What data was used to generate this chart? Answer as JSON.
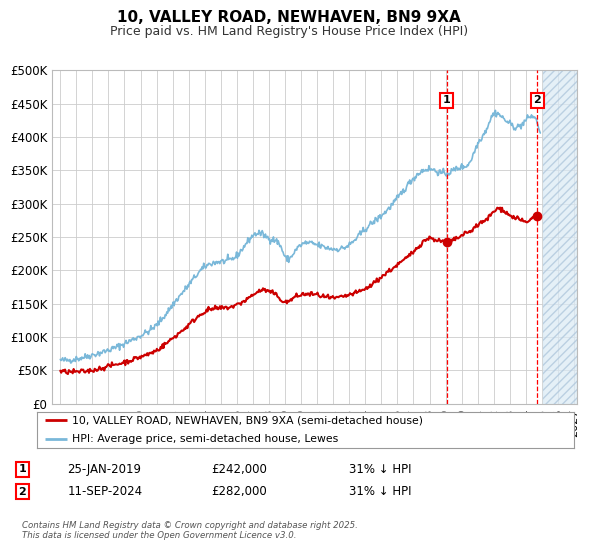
{
  "title": "10, VALLEY ROAD, NEWHAVEN, BN9 9XA",
  "subtitle": "Price paid vs. HM Land Registry's House Price Index (HPI)",
  "ylim": [
    0,
    500000
  ],
  "xlim_start": 1994.5,
  "xlim_end": 2027.2,
  "yticks": [
    0,
    50000,
    100000,
    150000,
    200000,
    250000,
    300000,
    350000,
    400000,
    450000,
    500000
  ],
  "ytick_labels": [
    "£0",
    "£50K",
    "£100K",
    "£150K",
    "£200K",
    "£250K",
    "£300K",
    "£350K",
    "£400K",
    "£450K",
    "£500K"
  ],
  "hpi_color": "#7ab8d9",
  "price_color": "#cc0000",
  "hatch_color": "#daeaf5",
  "marker1_date": "25-JAN-2019",
  "marker1_price": 242000,
  "marker1_hpi_pct": "31% ↓ HPI",
  "marker1_x": 2019.07,
  "marker1_y": 242000,
  "marker2_date": "11-SEP-2024",
  "marker2_price": 282000,
  "marker2_hpi_pct": "31% ↓ HPI",
  "marker2_x": 2024.72,
  "marker2_y": 282000,
  "legend_label_red": "10, VALLEY ROAD, NEWHAVEN, BN9 9XA (semi-detached house)",
  "legend_label_blue": "HPI: Average price, semi-detached house, Lewes",
  "footer": "Contains HM Land Registry data © Crown copyright and database right 2025.\nThis data is licensed under the Open Government Licence v3.0.",
  "bg_color": "#ffffff",
  "grid_color": "#cccccc",
  "hatch_start": 2025.08,
  "hatch_end": 2027.2,
  "xtick_years": [
    1995,
    1996,
    1997,
    1998,
    1999,
    2000,
    2001,
    2002,
    2003,
    2004,
    2005,
    2006,
    2007,
    2008,
    2009,
    2010,
    2011,
    2012,
    2013,
    2014,
    2015,
    2016,
    2017,
    2018,
    2019,
    2020,
    2021,
    2022,
    2023,
    2024,
    2025,
    2026,
    2027
  ]
}
